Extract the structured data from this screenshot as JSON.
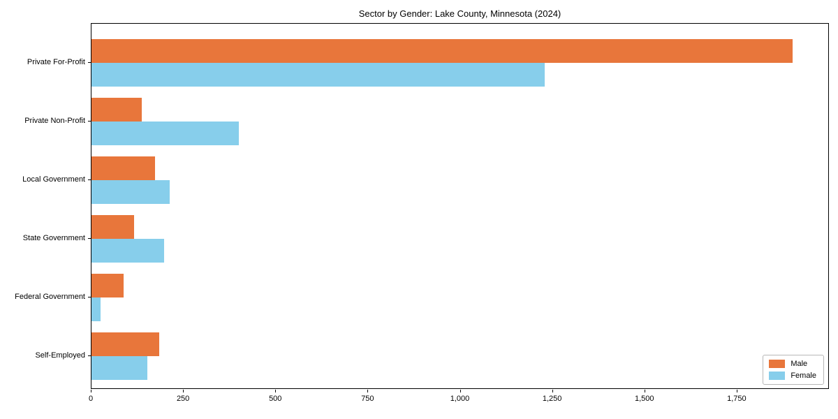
{
  "title": "Sector by Gender: Lake County, Minnesota (2024)",
  "chart_data": {
    "type": "bar",
    "orientation": "horizontal",
    "title": "Sector by Gender: Lake County, Minnesota (2024)",
    "categories": [
      "Private For-Profit",
      "Private Non-Profit",
      "Local Government",
      "State Government",
      "Federal Government",
      "Self-Employed"
    ],
    "series": [
      {
        "name": "Male",
        "color": "#E8763B",
        "values": [
          1900,
          137,
          172,
          115,
          87,
          183
        ]
      },
      {
        "name": "Female",
        "color": "#87CEEB",
        "values": [
          1228,
          399,
          212,
          196,
          25,
          151
        ]
      }
    ],
    "xlabel": "",
    "ylabel": "",
    "xlim": [
      0,
      2000
    ],
    "xticks": [
      0,
      250,
      500,
      750,
      1000,
      1250,
      1500,
      1750
    ],
    "xtick_labels": [
      "0",
      "250",
      "500",
      "750",
      "1,000",
      "1,250",
      "1,500",
      "1,750"
    ],
    "grid": false,
    "legend": {
      "position": "lower right",
      "entries": [
        "Male",
        "Female"
      ]
    }
  }
}
